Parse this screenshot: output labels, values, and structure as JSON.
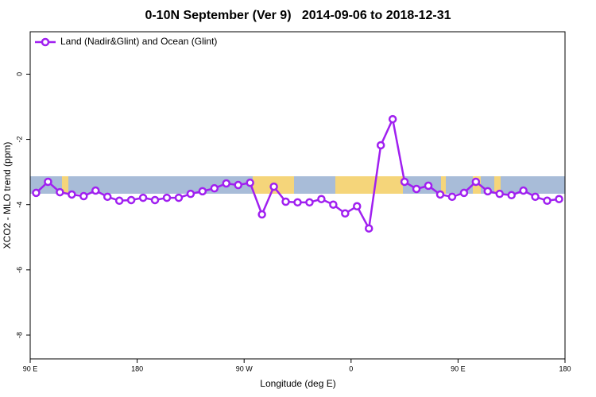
{
  "chart_data": {
    "type": "line",
    "title": "0-10N September (Ver 9)   2014-09-06 to 2018-12-31",
    "x_label": "Longitude (deg E)",
    "y_label": "XCO2 - MLO trend (ppm)",
    "xlim": [
      90,
      540
    ],
    "ylim": [
      -8.73,
      1.3
    ],
    "xticks": [
      {
        "value": 90,
        "label": "90 E"
      },
      180,
      {
        "value": 270,
        "label": "90 W"
      },
      {
        "value": 360,
        "label": "0"
      },
      {
        "value": 450,
        "label": "90 E"
      },
      {
        "value": 540,
        "label": "180"
      }
    ],
    "yticks": [
      0,
      -2,
      -4,
      -6,
      -8
    ],
    "legend": "top-left",
    "series": [
      {
        "name": "Land (Nadir&Glint) and Ocean (Glint)",
        "color": "#a020f0",
        "x": [
          95,
          105,
          115,
          125,
          135,
          145,
          155,
          165,
          175,
          185,
          195,
          205,
          215,
          225,
          235,
          245,
          255,
          265,
          275,
          285,
          295,
          305,
          315,
          325,
          335,
          345,
          355,
          365,
          375,
          385,
          395,
          405,
          415,
          425,
          435,
          445,
          455,
          465,
          475,
          485,
          495,
          505,
          515,
          525,
          535
        ],
        "values": [
          -3.64,
          -3.3,
          -3.62,
          -3.69,
          -3.74,
          -3.57,
          -3.76,
          -3.88,
          -3.86,
          -3.79,
          -3.86,
          -3.79,
          -3.79,
          -3.67,
          -3.59,
          -3.5,
          -3.35,
          -3.4,
          -3.33,
          -4.3,
          -3.45,
          -3.91,
          -3.93,
          -3.93,
          -3.83,
          -4.0,
          -4.27,
          -4.05,
          -4.73,
          -2.18,
          -1.38,
          -3.3,
          -3.52,
          -3.42,
          -3.69,
          -3.76,
          -3.64,
          -3.3,
          -3.59,
          -3.67,
          -3.71,
          -3.57,
          -3.76,
          -3.88,
          -3.83
        ]
      }
    ]
  }
}
